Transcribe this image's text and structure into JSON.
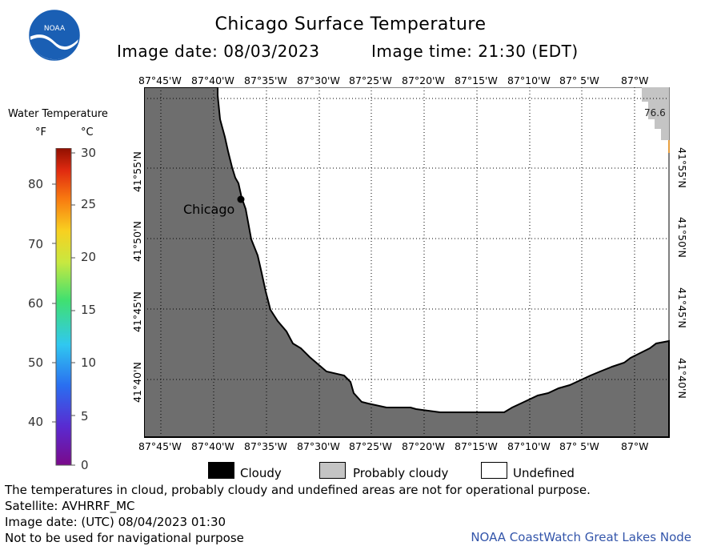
{
  "title": "Chicago Surface Temperature",
  "image_date_label": "Image date: 08/03/2023",
  "image_time_label": "Image time: 21:30 (EDT)",
  "logo": {
    "text": "NOAA",
    "icon": "noaa-logo"
  },
  "legend": {
    "title": "Water Temperature",
    "unit_f": "°F",
    "unit_c": "°C",
    "fahrenheit_ticks": [
      "80",
      "70",
      "60",
      "50",
      "40"
    ],
    "celsius_ticks": [
      "30",
      "25",
      "20",
      "15",
      "10",
      "5",
      "0"
    ]
  },
  "map": {
    "longitude_labels": [
      "87°45'W",
      "87°40'W",
      "87°35'W",
      "87°30'W",
      "87°25'W",
      "87°20'W",
      "87°15'W",
      "87°10'W",
      "87° 5'W",
      "87°W"
    ],
    "latitude_labels": [
      "41°55'N",
      "41°50'N",
      "41°45'N",
      "41°40'N"
    ],
    "city_label": "Chicago",
    "temperature_reading": "76.6",
    "colors": {
      "land": "#6e6e6e",
      "probably_cloudy": "#c4c4c4",
      "undefined": "#ffffff",
      "cloudy": "#000000"
    }
  },
  "key": {
    "cloudy": "Cloudy",
    "probably_cloudy": "Probably cloudy",
    "undefined": "Undefined"
  },
  "footer": {
    "disclaimer": "The temperatures in cloud, probably cloudy and undefined areas are not for operational purpose.",
    "satellite": "Satellite: AVHRRF_MC",
    "utc_date": "Image date: (UTC) 08/04/2023  01:30",
    "navigation_note": "Not to be used for navigational purpose",
    "credit": "NOAA CoastWatch Great Lakes Node"
  }
}
